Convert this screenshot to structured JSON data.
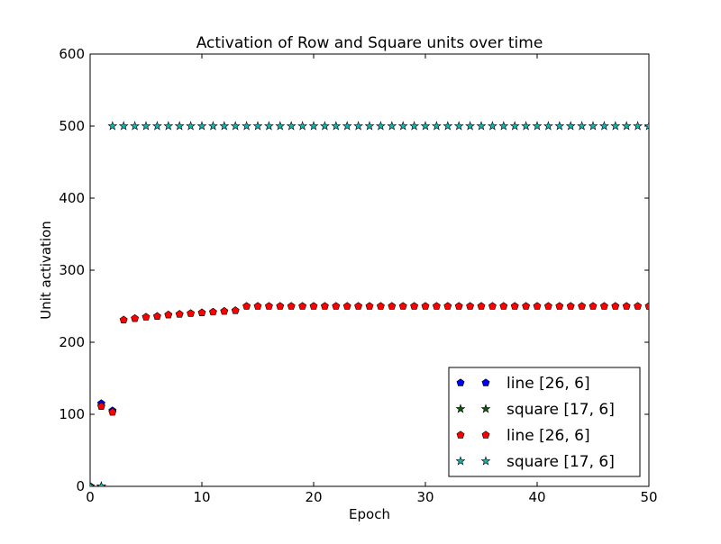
{
  "chart_data": {
    "type": "scatter",
    "title": "Activation of Row and Square units over time",
    "xlabel": "Epoch",
    "ylabel": "Unit activation",
    "xlim": [
      0,
      50
    ],
    "ylim": [
      0,
      600
    ],
    "xticks": [
      0,
      10,
      20,
      30,
      40,
      50
    ],
    "yticks": [
      0,
      100,
      200,
      300,
      400,
      500,
      600
    ],
    "grid": false,
    "legend_position": "bottom-right",
    "series": [
      {
        "name": "line [26, 6]",
        "marker": "pentagon",
        "color": "#0000ff",
        "points": [
          [
            0,
            0
          ],
          [
            1,
            115
          ],
          [
            2,
            105
          ]
        ]
      },
      {
        "name": "square [17, 6]",
        "marker": "star",
        "color": "#006400",
        "points": [
          [
            0,
            0
          ],
          [
            1,
            0
          ]
        ]
      },
      {
        "name": "line [26, 6]",
        "marker": "pentagon",
        "color": "#ff0000",
        "points": [
          [
            0,
            0
          ],
          [
            1,
            111
          ],
          [
            2,
            103
          ],
          [
            3,
            231
          ],
          [
            4,
            233
          ],
          [
            5,
            235
          ],
          [
            6,
            236
          ],
          [
            7,
            238
          ],
          [
            8,
            239
          ],
          [
            9,
            240
          ],
          [
            10,
            241
          ],
          [
            11,
            242
          ],
          [
            12,
            243
          ],
          [
            13,
            244
          ],
          [
            14,
            250
          ],
          [
            15,
            250
          ],
          [
            16,
            250
          ],
          [
            17,
            250
          ],
          [
            18,
            250
          ],
          [
            19,
            250
          ],
          [
            20,
            250
          ],
          [
            21,
            250
          ],
          [
            22,
            250
          ],
          [
            23,
            250
          ],
          [
            24,
            250
          ],
          [
            25,
            250
          ],
          [
            26,
            250
          ],
          [
            27,
            250
          ],
          [
            28,
            250
          ],
          [
            29,
            250
          ],
          [
            30,
            250
          ],
          [
            31,
            250
          ],
          [
            32,
            250
          ],
          [
            33,
            250
          ],
          [
            34,
            250
          ],
          [
            35,
            250
          ],
          [
            36,
            250
          ],
          [
            37,
            250
          ],
          [
            38,
            250
          ],
          [
            39,
            250
          ],
          [
            40,
            250
          ],
          [
            41,
            250
          ],
          [
            42,
            250
          ],
          [
            43,
            250
          ],
          [
            44,
            250
          ],
          [
            45,
            250
          ],
          [
            46,
            250
          ],
          [
            47,
            250
          ],
          [
            48,
            250
          ],
          [
            49,
            250
          ],
          [
            50,
            250
          ]
        ]
      },
      {
        "name": "square [17, 6]",
        "marker": "star",
        "color": "#00bfbf",
        "points": [
          [
            0,
            0
          ],
          [
            1,
            0
          ],
          [
            2,
            500
          ],
          [
            3,
            500
          ],
          [
            4,
            500
          ],
          [
            5,
            500
          ],
          [
            6,
            500
          ],
          [
            7,
            500
          ],
          [
            8,
            500
          ],
          [
            9,
            500
          ],
          [
            10,
            500
          ],
          [
            11,
            500
          ],
          [
            12,
            500
          ],
          [
            13,
            500
          ],
          [
            14,
            500
          ],
          [
            15,
            500
          ],
          [
            16,
            500
          ],
          [
            17,
            500
          ],
          [
            18,
            500
          ],
          [
            19,
            500
          ],
          [
            20,
            500
          ],
          [
            21,
            500
          ],
          [
            22,
            500
          ],
          [
            23,
            500
          ],
          [
            24,
            500
          ],
          [
            25,
            500
          ],
          [
            26,
            500
          ],
          [
            27,
            500
          ],
          [
            28,
            500
          ],
          [
            29,
            500
          ],
          [
            30,
            500
          ],
          [
            31,
            500
          ],
          [
            32,
            500
          ],
          [
            33,
            500
          ],
          [
            34,
            500
          ],
          [
            35,
            500
          ],
          [
            36,
            500
          ],
          [
            37,
            500
          ],
          [
            38,
            500
          ],
          [
            39,
            500
          ],
          [
            40,
            500
          ],
          [
            41,
            500
          ],
          [
            42,
            500
          ],
          [
            43,
            500
          ],
          [
            44,
            500
          ],
          [
            45,
            500
          ],
          [
            46,
            500
          ],
          [
            47,
            500
          ],
          [
            48,
            500
          ],
          [
            49,
            500
          ],
          [
            50,
            500
          ]
        ]
      }
    ]
  }
}
